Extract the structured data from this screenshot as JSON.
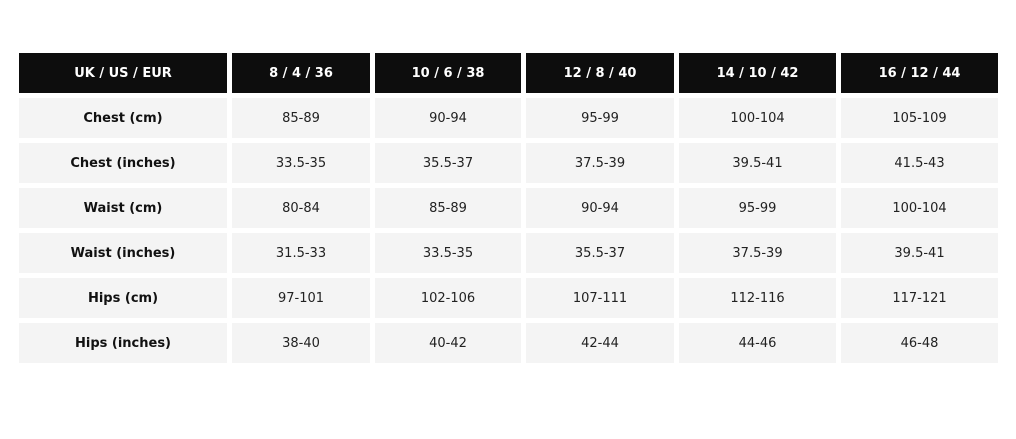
{
  "table": {
    "headers": [
      "UK / US / EUR",
      "8 / 4 / 36",
      "10 / 6 / 38",
      "12 / 8 / 40",
      "14 / 10 / 42",
      "16 / 12 / 44"
    ],
    "rows": [
      {
        "label": "Chest (cm)",
        "values": [
          "85-89",
          "90-94",
          "95-99",
          "100-104",
          "105-109"
        ]
      },
      {
        "label": "Chest (inches)",
        "values": [
          "33.5-35",
          "35.5-37",
          "37.5-39",
          "39.5-41",
          "41.5-43"
        ]
      },
      {
        "label": "Waist (cm)",
        "values": [
          "80-84",
          "85-89",
          "90-94",
          "95-99",
          "100-104"
        ]
      },
      {
        "label": "Waist (inches)",
        "values": [
          "31.5-33",
          "33.5-35",
          "35.5-37",
          "37.5-39",
          "39.5-41"
        ]
      },
      {
        "label": "Hips (cm)",
        "values": [
          "97-101",
          "102-106",
          "107-111",
          "112-116",
          "117-121"
        ]
      },
      {
        "label": "Hips (inches)",
        "values": [
          "38-40",
          "40-42",
          "42-44",
          "44-46",
          "46-48"
        ]
      }
    ]
  },
  "colors": {
    "header_bg": "#0d0d0d",
    "cell_bg": "#f4f4f4"
  }
}
